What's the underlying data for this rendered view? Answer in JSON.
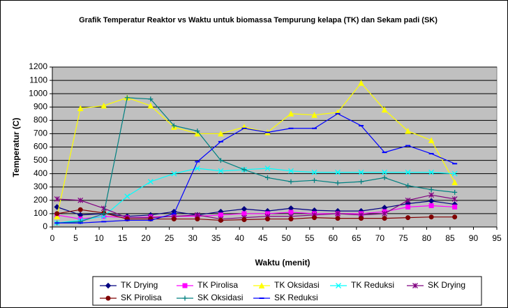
{
  "chart_data": {
    "type": "line",
    "title": "Grafik Temperatur Reaktor vs Waktu untuk biomassa Tempurung kelapa (TK)  dan Sekam padi (SK)",
    "x_label": "Waktu (menit)",
    "y_label": "Temperatur (C)",
    "x": [
      1,
      6,
      11,
      16,
      21,
      26,
      31,
      36,
      41,
      46,
      51,
      56,
      61,
      66,
      71,
      76,
      81,
      86
    ],
    "xlim": [
      0,
      95
    ],
    "xticks": [
      0,
      5,
      10,
      15,
      20,
      25,
      30,
      35,
      40,
      45,
      50,
      55,
      60,
      65,
      70,
      75,
      80,
      85,
      90,
      95
    ],
    "ylim": [
      0,
      1200
    ],
    "yticks": [
      0,
      100,
      200,
      300,
      400,
      500,
      600,
      700,
      800,
      900,
      1000,
      1100,
      1200
    ],
    "grid": true,
    "series": [
      {
        "name": "TK Drying",
        "color": "#000080",
        "marker": "diamond",
        "values": [
          150,
          90,
          100,
          80,
          90,
          115,
          90,
          115,
          135,
          120,
          140,
          125,
          120,
          120,
          145,
          175,
          195,
          170
        ]
      },
      {
        "name": "TK Pirolisa",
        "color": "#ff00ff",
        "marker": "square",
        "values": [
          90,
          60,
          80,
          70,
          75,
          80,
          80,
          90,
          100,
          100,
          110,
          100,
          100,
          100,
          115,
          150,
          160,
          150
        ]
      },
      {
        "name": "TK Oksidasi",
        "color": "#ffff00",
        "marker": "triangle",
        "values": [
          80,
          890,
          910,
          970,
          910,
          750,
          700,
          700,
          750,
          710,
          850,
          840,
          860,
          1080,
          880,
          720,
          650,
          335
        ]
      },
      {
        "name": "TK Reduksi",
        "color": "#00ffff",
        "marker": "x",
        "values": [
          30,
          50,
          80,
          230,
          340,
          400,
          440,
          420,
          430,
          440,
          420,
          410,
          410,
          410,
          410,
          410,
          410,
          400
        ]
      },
      {
        "name": "SK Drying",
        "color": "#800080",
        "marker": "star",
        "values": [
          210,
          200,
          140,
          70,
          70,
          80,
          90,
          60,
          70,
          80,
          80,
          90,
          100,
          90,
          100,
          200,
          240,
          210
        ]
      },
      {
        "name": "SK Pirolisa",
        "color": "#800000",
        "marker": "circle",
        "values": [
          100,
          130,
          105,
          60,
          60,
          60,
          60,
          50,
          55,
          60,
          60,
          70,
          65,
          65,
          65,
          70,
          75,
          75
        ]
      },
      {
        "name": "SK Oksidasi",
        "color": "#008080",
        "marker": "plus",
        "values": [
          30,
          40,
          100,
          970,
          960,
          760,
          720,
          500,
          430,
          370,
          340,
          350,
          330,
          340,
          370,
          310,
          280,
          260
        ]
      },
      {
        "name": "SK Reduksi",
        "color": "#0000ff",
        "marker": "dash",
        "values": [
          30,
          30,
          40,
          50,
          50,
          100,
          490,
          640,
          740,
          710,
          740,
          740,
          850,
          760,
          560,
          610,
          550,
          475
        ]
      }
    ]
  }
}
